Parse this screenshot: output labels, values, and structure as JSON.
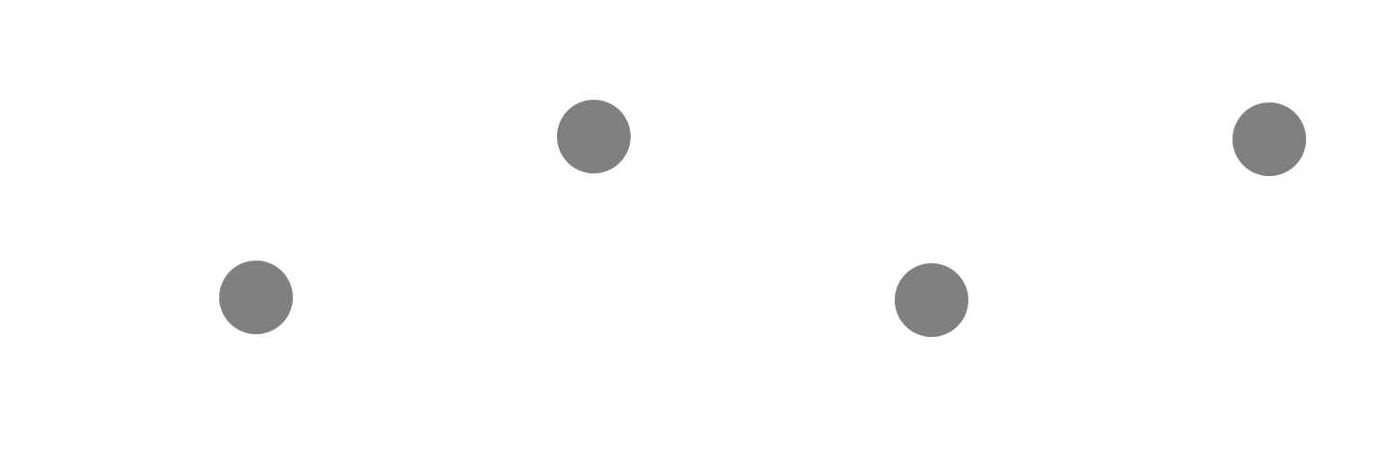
{
  "dots": [
    {
      "color": "#808080"
    },
    {
      "color": "#808080"
    },
    {
      "color": "#808080"
    },
    {
      "color": "#808080"
    }
  ]
}
